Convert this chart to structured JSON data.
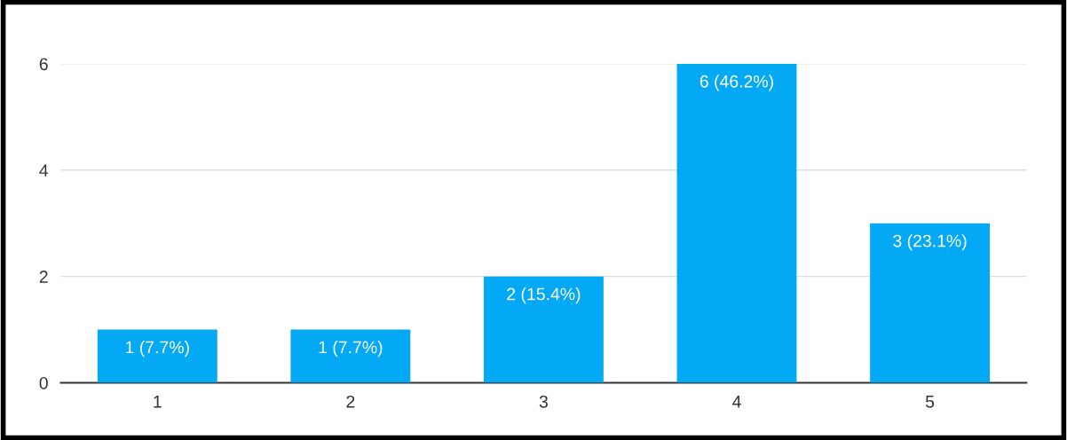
{
  "chart_data": {
    "type": "bar",
    "categories": [
      "1",
      "2",
      "3",
      "4",
      "5"
    ],
    "values": [
      1,
      1,
      2,
      6,
      3
    ],
    "value_labels": [
      "1 (7.7%)",
      "1 (7.7%)",
      "2 (15.4%)",
      "6 (46.2%)",
      "3 (23.1%)"
    ],
    "color": "#03a9f4",
    "ylim": [
      0,
      6
    ],
    "yticks": [
      0,
      2,
      4,
      6
    ],
    "grid": "y"
  }
}
